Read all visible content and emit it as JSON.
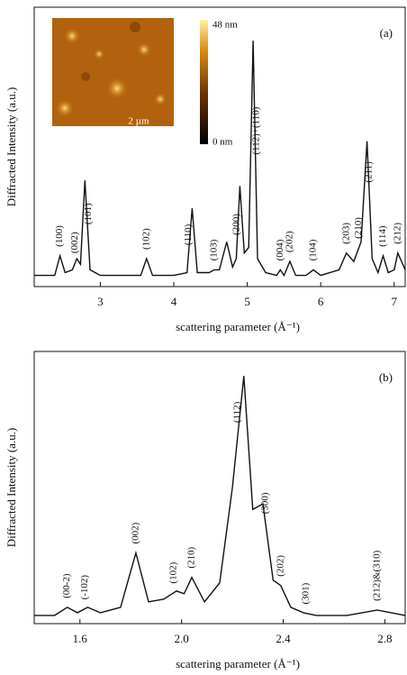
{
  "chart_data": [
    {
      "type": "line",
      "panel_label": "(a)",
      "x_label": "scattering parameter (Å⁻¹)",
      "y_label": "Diffracted Intensity (a.u.)",
      "x": [
        2.1,
        2.38,
        2.45,
        2.52,
        2.62,
        2.68,
        2.73,
        2.79,
        2.86,
        3.0,
        3.55,
        3.63,
        3.71,
        4.0,
        4.18,
        4.25,
        4.32,
        4.48,
        4.55,
        4.62,
        4.72,
        4.8,
        4.85,
        4.9,
        4.96,
        5.02,
        5.08,
        5.14,
        5.25,
        5.4,
        5.45,
        5.5,
        5.58,
        5.66,
        5.8,
        5.9,
        6.0,
        6.25,
        6.35,
        6.45,
        6.55,
        6.63,
        6.7,
        6.78,
        6.85,
        6.92,
        7.0,
        7.05,
        7.15
      ],
      "values": [
        4,
        4,
        11,
        5,
        6,
        10,
        8,
        38,
        6,
        4,
        4,
        10,
        4,
        4,
        5,
        28,
        5,
        5,
        6,
        6,
        16,
        7,
        10,
        36,
        12,
        14,
        88,
        10,
        5,
        4,
        6,
        4,
        9,
        4,
        4,
        6,
        4,
        6,
        12,
        9,
        16,
        52,
        10,
        5,
        11,
        5,
        6,
        12,
        6
      ],
      "color": "#111111",
      "xlim": [
        2.1,
        7.15
      ],
      "xticks": [
        3,
        4,
        5,
        6,
        7
      ],
      "ylim": [
        0,
        100
      ],
      "annotations": [
        {
          "text": "(100)",
          "x": 2.45
        },
        {
          "text": "(002)",
          "x": 2.66
        },
        {
          "text": "(101)",
          "x": 2.84
        },
        {
          "text": "(102)",
          "x": 3.63
        },
        {
          "text": "(110)",
          "x": 4.2
        },
        {
          "text": "(103)",
          "x": 4.55
        },
        {
          "text": "(200)",
          "x": 4.86
        },
        {
          "text": "(112)+(110)",
          "x": 5.13
        },
        {
          "text": "(004)",
          "x": 5.45
        },
        {
          "text": "(202)",
          "x": 5.58
        },
        {
          "text": "(104)",
          "x": 5.9
        },
        {
          "text": "(203)",
          "x": 6.35
        },
        {
          "text": "(210)",
          "x": 6.52
        },
        {
          "text": "(211)",
          "x": 6.66
        },
        {
          "text": "(114)",
          "x": 6.85
        },
        {
          "text": "(212)",
          "x": 7.05
        }
      ],
      "inset": {
        "colorbar_max": "48 nm",
        "colorbar_min": "0 nm",
        "scale_bar": "2 µm"
      }
    },
    {
      "type": "line",
      "panel_label": "(b)",
      "x_label": "scattering parameter (Å⁻¹)",
      "y_label": "Diffracted Intensity (a.u.)",
      "x": [
        1.42,
        1.5,
        1.55,
        1.59,
        1.63,
        1.68,
        1.76,
        1.82,
        1.87,
        1.93,
        1.98,
        2.01,
        2.04,
        2.09,
        2.15,
        2.2,
        2.245,
        2.28,
        2.32,
        2.36,
        2.39,
        2.43,
        2.48,
        2.53,
        2.65,
        2.77,
        2.88
      ],
      "values": [
        3,
        3,
        6,
        4,
        6,
        4,
        6,
        26,
        8,
        9,
        12,
        11,
        17,
        8,
        15,
        50,
        91,
        42,
        44,
        16,
        14,
        6,
        4,
        3,
        3,
        5,
        3
      ],
      "color": "#111111",
      "xlim": [
        1.42,
        2.88
      ],
      "xticks": [
        1.6,
        {
          "value": 2,
          "label": "2.0"
        },
        2.4,
        2.8
      ],
      "ylim": [
        0,
        100
      ],
      "annotations": [
        {
          "text": "(00-2)",
          "x": 1.55
        },
        {
          "text": "(-102)",
          "x": 1.62
        },
        {
          "text": "(002)",
          "x": 1.82
        },
        {
          "text": "(102)",
          "x": 1.97
        },
        {
          "text": "(210)",
          "x": 2.04
        },
        {
          "text": "(112)",
          "x": 2.22
        },
        {
          "text": "(300)",
          "x": 2.33
        },
        {
          "text": "(202)",
          "x": 2.39
        },
        {
          "text": "(301)",
          "x": 2.49
        },
        {
          "text": "(212)&(310)",
          "x": 2.77
        }
      ]
    }
  ]
}
